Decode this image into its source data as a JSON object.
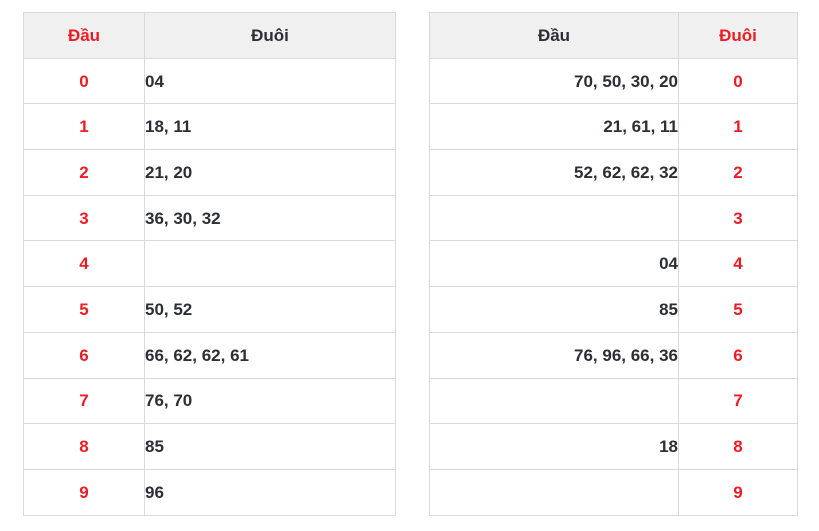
{
  "colors": {
    "accent_red": "#ed1c24",
    "text_dark": "#2c2f36",
    "header_bg": "#f0f0f0",
    "border": "#d9d9d9",
    "background": "#ffffff"
  },
  "left_table": {
    "headers": {
      "dau": "Đầu",
      "duoi": "Đuôi"
    },
    "rows": [
      {
        "dau": "0",
        "duoi": "04"
      },
      {
        "dau": "1",
        "duoi": "18, 11"
      },
      {
        "dau": "2",
        "duoi": "21, 20"
      },
      {
        "dau": "3",
        "duoi": "36, 30, 32"
      },
      {
        "dau": "4",
        "duoi": ""
      },
      {
        "dau": "5",
        "duoi": "50, 52"
      },
      {
        "dau": "6",
        "duoi": "66, 62, 62, 61"
      },
      {
        "dau": "7",
        "duoi": "76, 70"
      },
      {
        "dau": "8",
        "duoi": "85"
      },
      {
        "dau": "9",
        "duoi": "96"
      }
    ]
  },
  "right_table": {
    "headers": {
      "dau": "Đầu",
      "duoi": "Đuôi"
    },
    "rows": [
      {
        "dau": "70, 50, 30, 20",
        "duoi": "0"
      },
      {
        "dau": "21, 61, 11",
        "duoi": "1"
      },
      {
        "dau": "52, 62, 62, 32",
        "duoi": "2"
      },
      {
        "dau": "",
        "duoi": "3"
      },
      {
        "dau": "04",
        "duoi": "4"
      },
      {
        "dau": "85",
        "duoi": "5"
      },
      {
        "dau": "76, 96, 66, 36",
        "duoi": "6"
      },
      {
        "dau": "",
        "duoi": "7"
      },
      {
        "dau": "18",
        "duoi": "8"
      },
      {
        "dau": "",
        "duoi": "9"
      }
    ]
  }
}
